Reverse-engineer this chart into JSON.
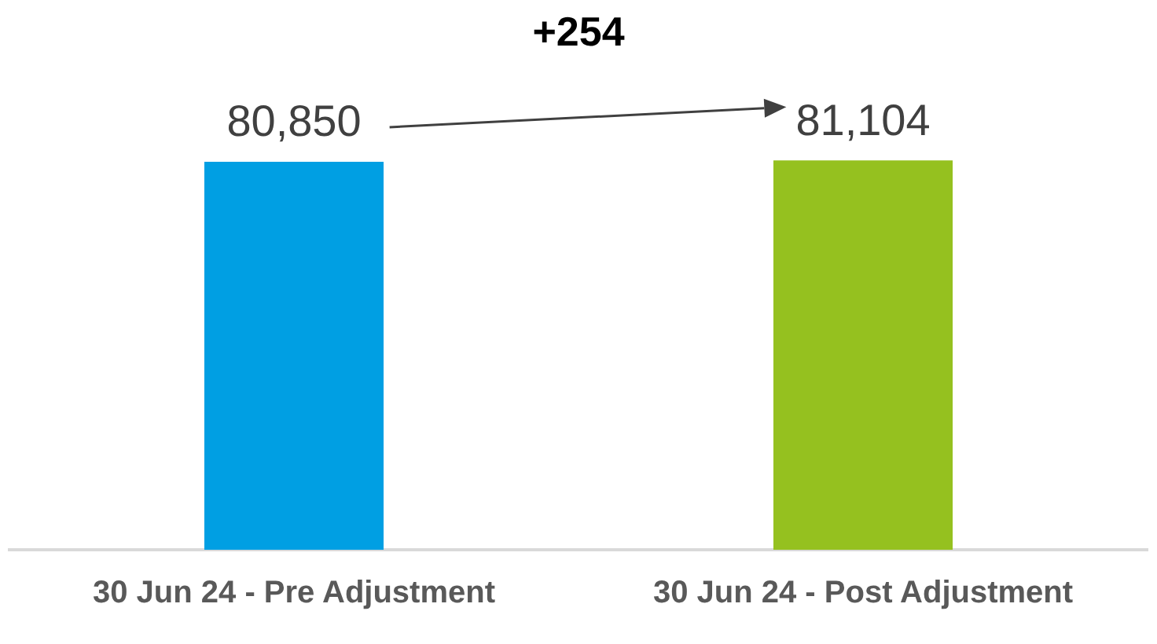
{
  "chart_data": {
    "type": "bar",
    "categories": [
      "30 Jun 24 - Pre Adjustment",
      "30 Jun 24 - Post Adjustment"
    ],
    "values": [
      80850,
      81104
    ],
    "colors": [
      "#009fe3",
      "#95c11f"
    ],
    "value_labels": [
      "80,850",
      "81,104"
    ],
    "tick_labels": "x",
    "grid": false,
    "legend": false,
    "annotations": [
      "+254"
    ]
  }
}
